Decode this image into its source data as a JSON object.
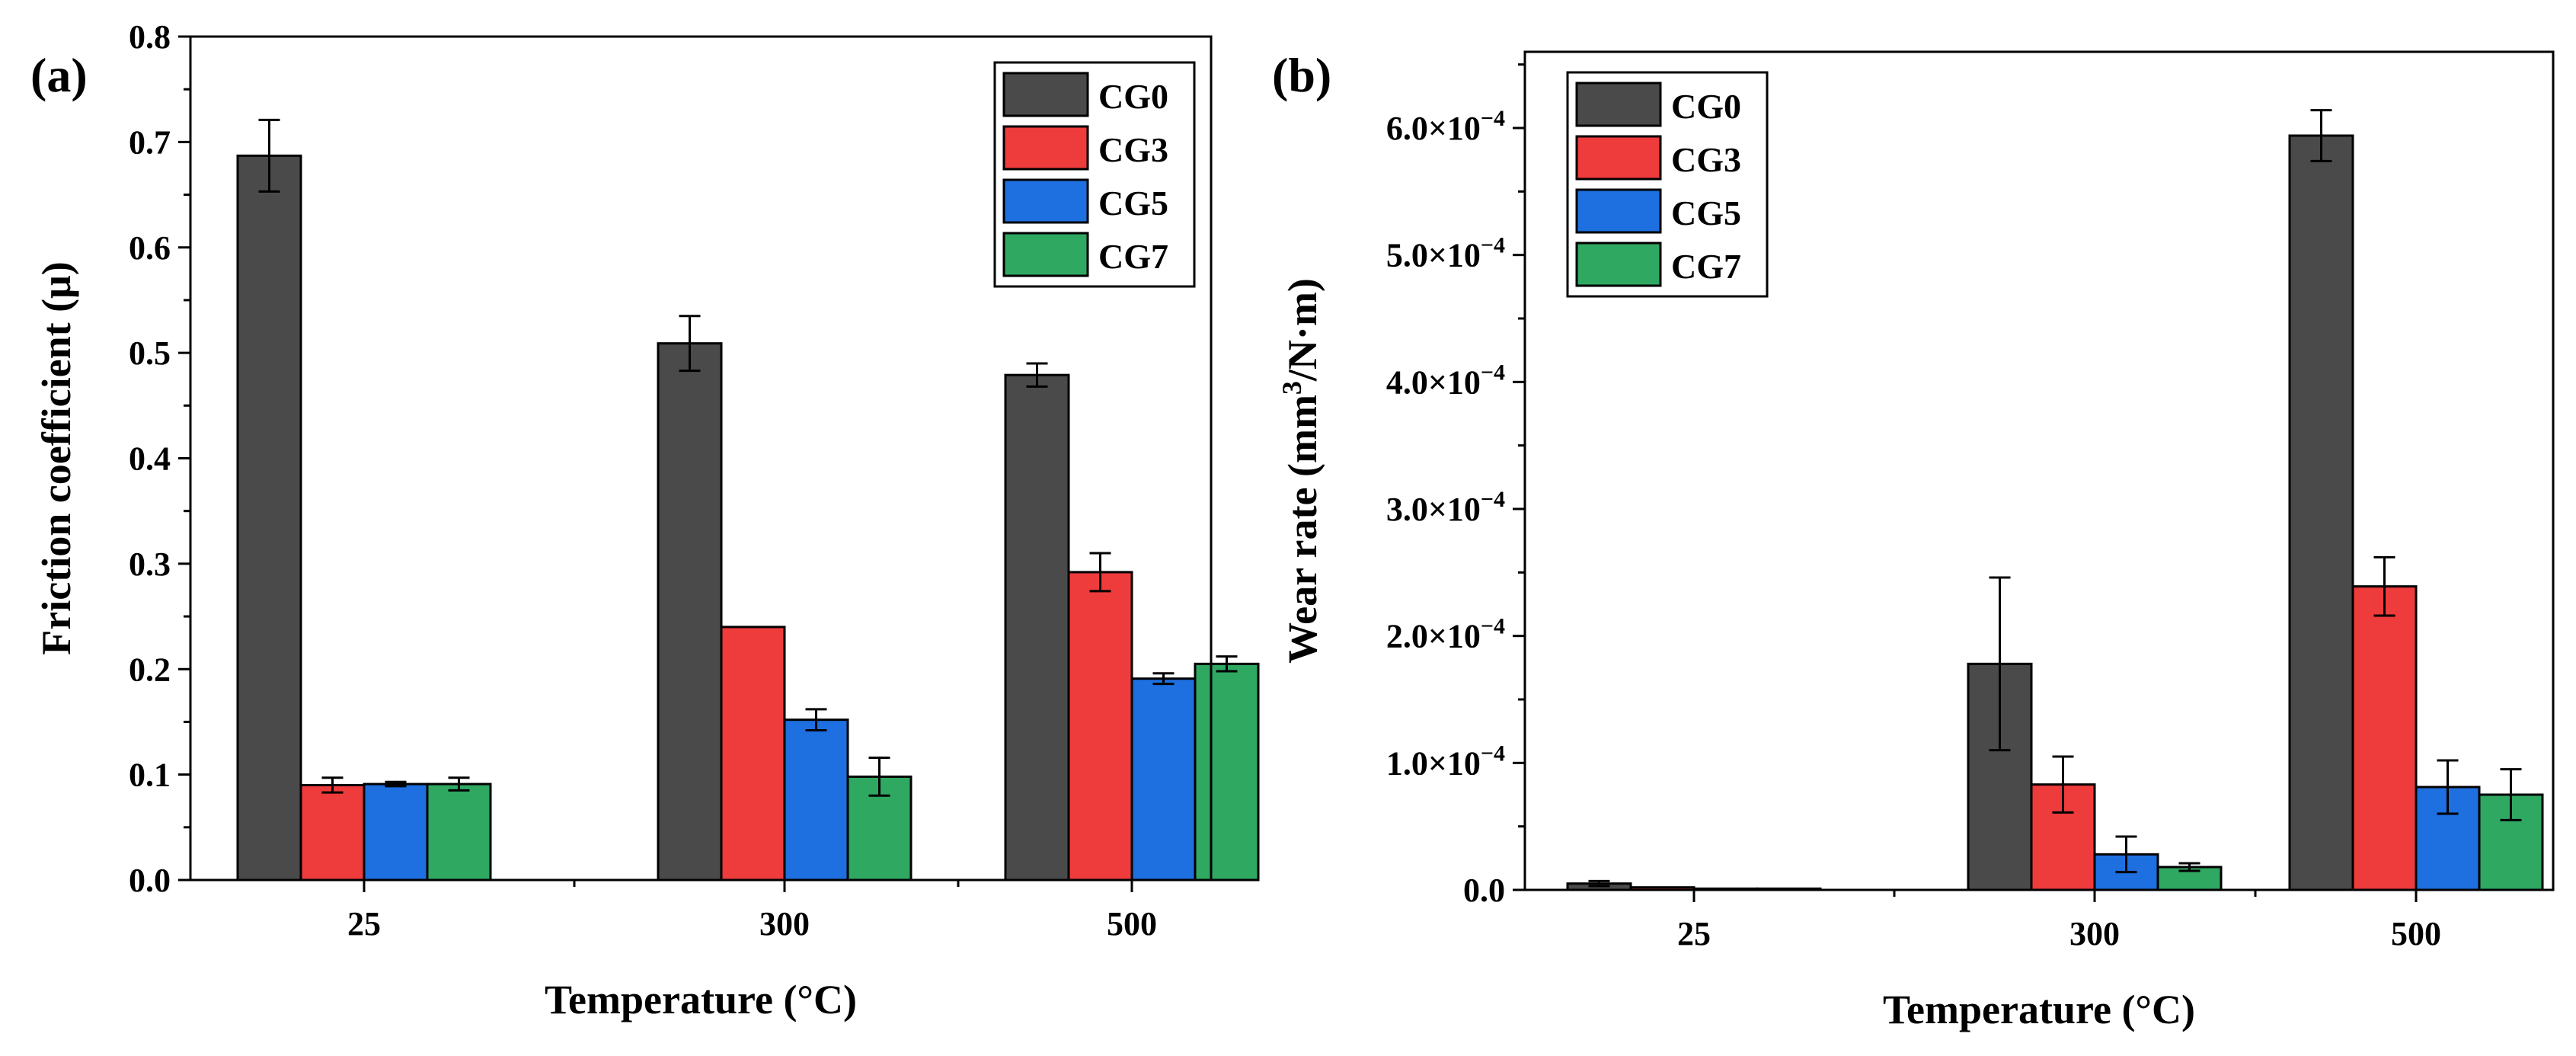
{
  "chart_data": [
    {
      "type": "bar",
      "panel_label": "(a)",
      "title": "",
      "xlabel": "Temperature (°C)",
      "ylabel": "Friction coefficient (μ)",
      "categories": [
        "25",
        "300",
        "500"
      ],
      "ylim": [
        0,
        0.8
      ],
      "yticks": [
        0.0,
        0.1,
        0.2,
        0.3,
        0.4,
        0.5,
        0.6,
        0.7,
        0.8
      ],
      "ytick_labels": [
        "0.0",
        "0.1",
        "0.2",
        "0.3",
        "0.4",
        "0.5",
        "0.6",
        "0.7",
        "0.8"
      ],
      "legend_position": "top-right",
      "grid": false,
      "series": [
        {
          "name": "CG0",
          "color": "#4a4a4a",
          "values": [
            0.687,
            0.509,
            0.479
          ],
          "errors": [
            0.034,
            0.026,
            0.011
          ]
        },
        {
          "name": "CG3",
          "color": "#ee3b3b",
          "values": [
            0.09,
            0.24,
            0.292
          ],
          "errors": [
            0.007,
            0.0,
            0.018
          ]
        },
        {
          "name": "CG5",
          "color": "#1e6fe0",
          "values": [
            0.091,
            0.152,
            0.191
          ],
          "errors": [
            0.002,
            0.01,
            0.005
          ]
        },
        {
          "name": "CG7",
          "color": "#2fa862",
          "values": [
            0.091,
            0.098,
            0.205
          ],
          "errors": [
            0.006,
            0.018,
            0.007
          ]
        }
      ]
    },
    {
      "type": "bar",
      "panel_label": "(b)",
      "title": "",
      "xlabel": "Temperature (°C)",
      "ylabel_prefix": "Wear rate (mm",
      "ylabel_sup": "3",
      "ylabel_suffix": "/N·m)",
      "categories": [
        "25",
        "300",
        "500"
      ],
      "ylim": [
        0,
        6.6
      ],
      "yticks": [
        0.0,
        1.0,
        2.0,
        3.0,
        4.0,
        5.0,
        6.0
      ],
      "ytick_mantissas": [
        "0.0",
        "1.0",
        "2.0",
        "3.0",
        "4.0",
        "5.0",
        "6.0"
      ],
      "ytick_base": "×10",
      "ytick_exponent": "−4",
      "value_unit_note": "values in units of 1e-4",
      "legend_position": "top-left",
      "grid": false,
      "series": [
        {
          "name": "CG0",
          "color": "#4a4a4a",
          "values": [
            0.05,
            1.78,
            5.94
          ],
          "errors": [
            0.02,
            0.68,
            0.2
          ]
        },
        {
          "name": "CG3",
          "color": "#ee3b3b",
          "values": [
            0.02,
            0.83,
            2.39
          ],
          "errors": [
            0.0,
            0.22,
            0.23
          ]
        },
        {
          "name": "CG5",
          "color": "#1e6fe0",
          "values": [
            0.01,
            0.28,
            0.81
          ],
          "errors": [
            0.0,
            0.14,
            0.21
          ]
        },
        {
          "name": "CG7",
          "color": "#2fa862",
          "values": [
            0.01,
            0.18,
            0.75
          ],
          "errors": [
            0.0,
            0.03,
            0.2
          ]
        }
      ]
    }
  ]
}
